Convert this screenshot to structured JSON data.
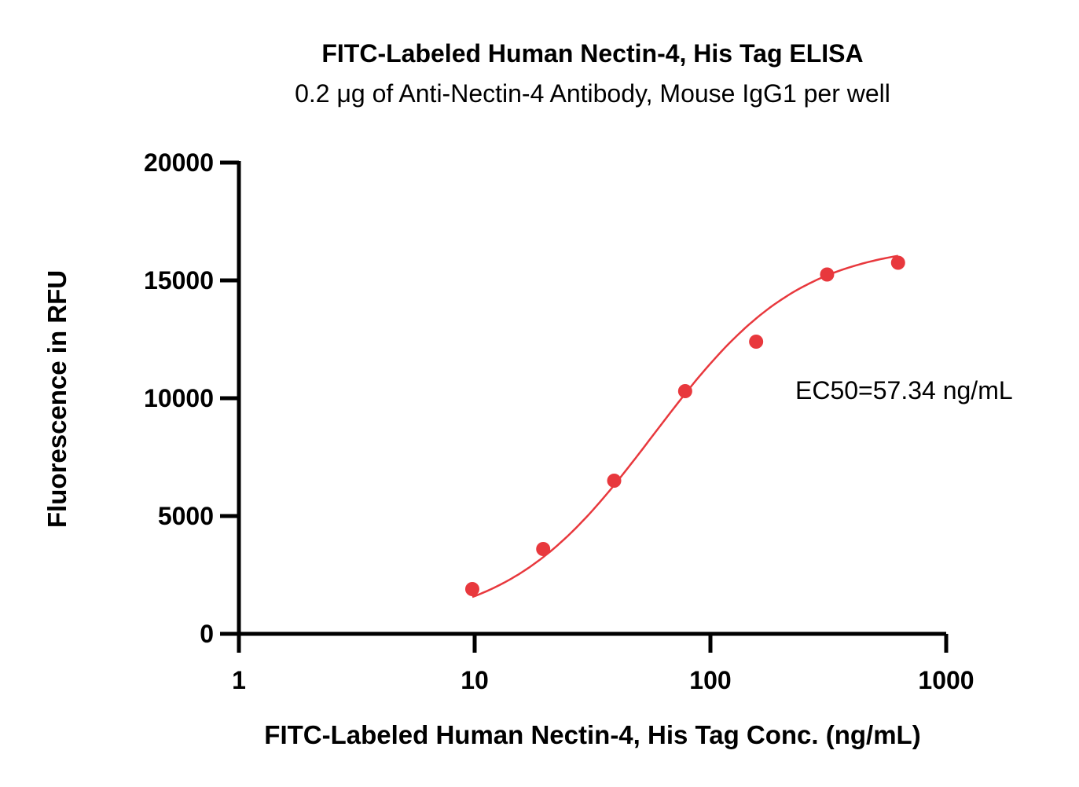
{
  "chart_data": {
    "type": "scatter",
    "title": "FITC-Labeled Human Nectin-4, His Tag ELISA",
    "subtitle": "0.2 μg of Anti-Nectin-4 Antibody, Mouse IgG1 per well",
    "xlabel": "FITC-Labeled Human Nectin-4, His Tag Conc. (ng/mL)",
    "ylabel": "Fluorescence in RFU",
    "x_scale": "log",
    "xlim": [
      1,
      1000
    ],
    "ylim": [
      0,
      20000
    ],
    "x_ticks": [
      1,
      10,
      100,
      1000
    ],
    "x_tick_labels": [
      "1",
      "10",
      "100",
      "1000"
    ],
    "y_ticks": [
      0,
      5000,
      10000,
      15000,
      20000
    ],
    "y_tick_labels": [
      "0",
      "5000",
      "10000",
      "15000",
      "20000"
    ],
    "grid": false,
    "color": "#e8383d",
    "series": [
      {
        "x": [
          9.77,
          19.53,
          39.06,
          78.13,
          156.25,
          312.5,
          625
        ],
        "y": [
          1900,
          3600,
          6500,
          10300,
          12400,
          15250,
          15750
        ]
      }
    ],
    "fit": {
      "model": "4PL",
      "bottom": 300,
      "top": 16600,
      "ec50": 57.34,
      "hill": 1.4
    },
    "annotation": "EC50=57.34 ng/mL"
  }
}
